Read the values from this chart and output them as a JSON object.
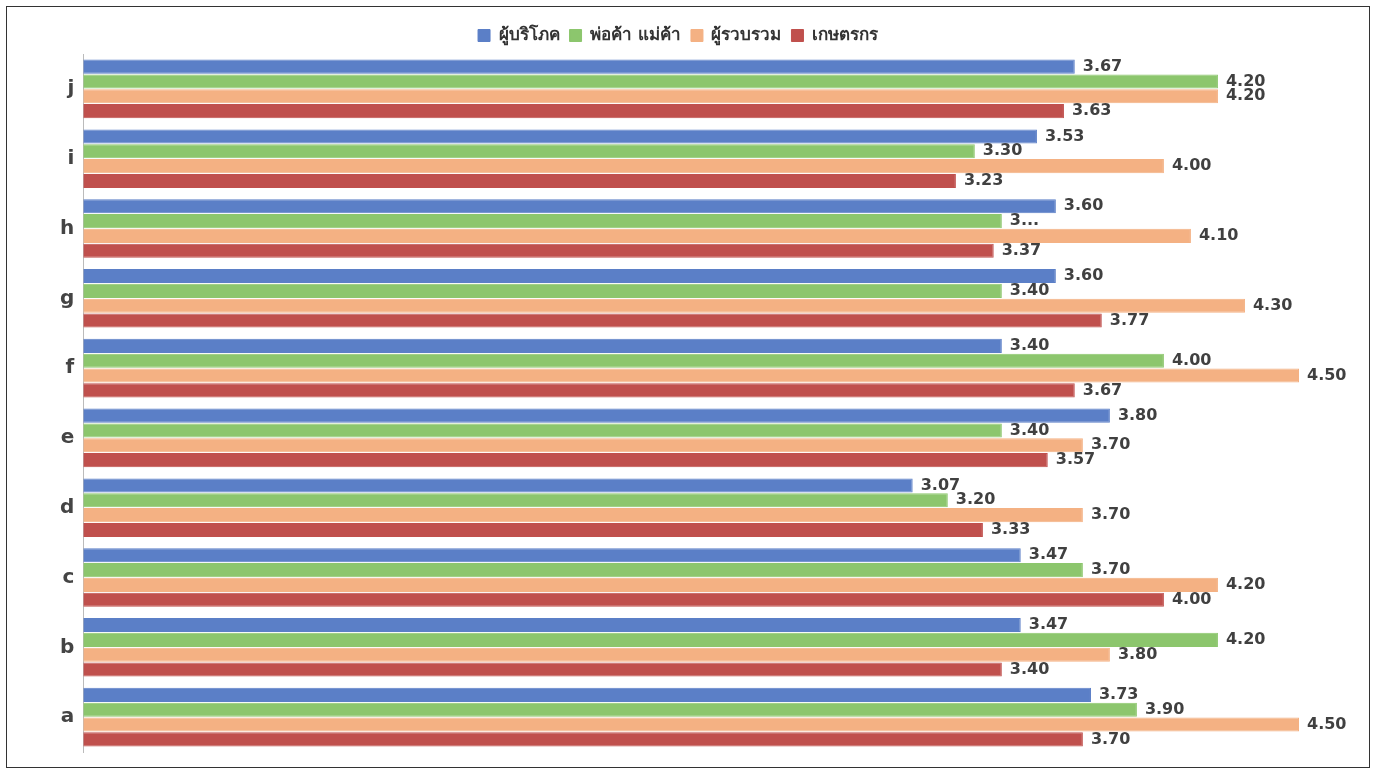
{
  "chart_data": {
    "type": "bar",
    "orientation": "horizontal",
    "categories": [
      "j",
      "i",
      "h",
      "g",
      "f",
      "e",
      "d",
      "c",
      "b",
      "a"
    ],
    "tick_labels": "y",
    "grid": false,
    "legend": "top",
    "series": [
      {
        "name": "ผู้บริโภค",
        "color": "#5b7fc7",
        "values": [
          3.67,
          3.53,
          3.6,
          3.6,
          3.4,
          3.8,
          3.07,
          3.47,
          3.47,
          3.73
        ],
        "value_labels": [
          "3.67",
          "3.53",
          "3.60",
          "3.60",
          "3.40",
          "3.80",
          "3.07",
          "3.47",
          "3.47",
          "3.73"
        ]
      },
      {
        "name": "พ่อค้า แม่ค้า",
        "color": "#8cc66d",
        "values": [
          4.2,
          3.3,
          3.4,
          3.4,
          4.0,
          3.4,
          3.2,
          3.7,
          4.2,
          3.9
        ],
        "value_labels": [
          "4.20",
          "3.30",
          "3...",
          "3.40",
          "4.00",
          "3.40",
          "3.20",
          "3.70",
          "4.20",
          "3.90"
        ]
      },
      {
        "name": "ผู้รวบรวม",
        "color": "#f4b183",
        "values": [
          4.2,
          4.0,
          4.1,
          4.3,
          4.5,
          3.7,
          3.7,
          4.2,
          3.8,
          4.5
        ],
        "value_labels": [
          "4.20",
          "4.00",
          "4.10",
          "4.30",
          "4.50",
          "3.70",
          "3.70",
          "4.20",
          "3.80",
          "4.50"
        ]
      },
      {
        "name": "เกษตรกร",
        "color": "#c0504d",
        "values": [
          3.63,
          3.23,
          3.37,
          3.77,
          3.67,
          3.57,
          3.33,
          4.0,
          3.4,
          3.7
        ],
        "value_labels": [
          "3.63",
          "3.23",
          "3.37",
          "3.77",
          "3.67",
          "3.57",
          "3.33",
          "4.00",
          "3.40",
          "3.70"
        ]
      }
    ]
  }
}
